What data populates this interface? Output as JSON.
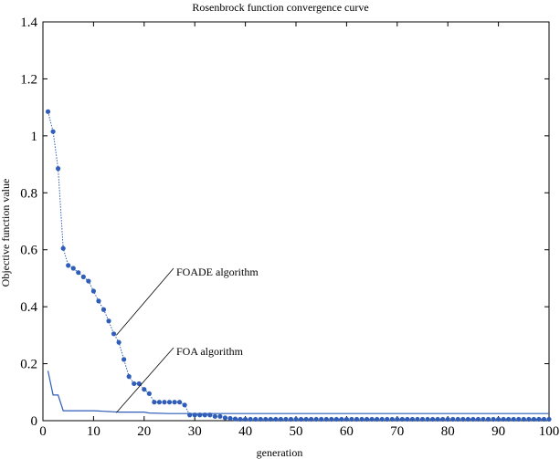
{
  "chart_data": {
    "type": "line",
    "title": "Rosenbrock function convergence curve",
    "xlabel": "generation",
    "ylabel": "Objective function value",
    "xlim": [
      0,
      100
    ],
    "ylim": [
      0,
      1.4
    ],
    "xticks": [
      "0",
      "10",
      "20",
      "30",
      "40",
      "50",
      "60",
      "70",
      "80",
      "90",
      "100"
    ],
    "yticks": [
      "0",
      "0.2",
      "0.4",
      "0.6",
      "0.8",
      "1",
      "1.2",
      "1.4"
    ],
    "grid": false,
    "line_color": "#2f5db8",
    "series": [
      {
        "name": "FOADE algorithm",
        "style": "dotted-with-markers",
        "x": [
          1,
          2,
          3,
          4,
          5,
          6,
          7,
          8,
          9,
          10,
          11,
          12,
          13,
          14,
          15,
          16,
          17,
          18,
          19,
          20,
          21,
          22,
          23,
          24,
          25,
          26,
          27,
          28,
          29,
          30,
          31,
          32,
          33,
          34,
          35,
          36,
          37,
          38,
          39,
          40,
          41,
          42,
          43,
          44,
          45,
          46,
          47,
          48,
          49,
          50,
          51,
          52,
          53,
          54,
          55,
          56,
          57,
          58,
          59,
          60,
          61,
          62,
          63,
          64,
          65,
          66,
          67,
          68,
          69,
          70,
          71,
          72,
          73,
          74,
          75,
          76,
          77,
          78,
          79,
          80,
          81,
          82,
          83,
          84,
          85,
          86,
          87,
          88,
          89,
          90,
          91,
          92,
          93,
          94,
          95,
          96,
          97,
          98,
          99,
          100
        ],
        "values": [
          1.085,
          1.015,
          0.885,
          0.605,
          0.545,
          0.535,
          0.52,
          0.505,
          0.49,
          0.455,
          0.42,
          0.39,
          0.35,
          0.305,
          0.275,
          0.215,
          0.155,
          0.13,
          0.13,
          0.11,
          0.095,
          0.065,
          0.065,
          0.065,
          0.065,
          0.065,
          0.065,
          0.055,
          0.02,
          0.02,
          0.02,
          0.02,
          0.02,
          0.015,
          0.015,
          0.01,
          0.008,
          0.006,
          0.005,
          0.005,
          0.005,
          0.005,
          0.005,
          0.005,
          0.005,
          0.005,
          0.005,
          0.005,
          0.005,
          0.005,
          0.005,
          0.005,
          0.005,
          0.005,
          0.005,
          0.005,
          0.005,
          0.005,
          0.005,
          0.005,
          0.005,
          0.005,
          0.005,
          0.005,
          0.005,
          0.005,
          0.005,
          0.005,
          0.005,
          0.005,
          0.005,
          0.005,
          0.005,
          0.005,
          0.005,
          0.005,
          0.005,
          0.005,
          0.005,
          0.005,
          0.005,
          0.005,
          0.005,
          0.005,
          0.005,
          0.005,
          0.005,
          0.005,
          0.005,
          0.005,
          0.005,
          0.005,
          0.005,
          0.005,
          0.005,
          0.005,
          0.005,
          0.005,
          0.005,
          0.005
        ]
      },
      {
        "name": "FOA algorithm",
        "style": "solid",
        "x": [
          1,
          2,
          3,
          4,
          5,
          6,
          7,
          8,
          9,
          10,
          11,
          12,
          13,
          14,
          15,
          16,
          17,
          18,
          19,
          20,
          21,
          25,
          30,
          40,
          50,
          60,
          70,
          80,
          90,
          100
        ],
        "values": [
          0.175,
          0.09,
          0.09,
          0.035,
          0.035,
          0.035,
          0.035,
          0.035,
          0.035,
          0.035,
          0.034,
          0.033,
          0.032,
          0.031,
          0.03,
          0.03,
          0.03,
          0.03,
          0.03,
          0.03,
          0.027,
          0.025,
          0.025,
          0.025,
          0.025,
          0.025,
          0.025,
          0.025,
          0.025,
          0.025
        ]
      }
    ],
    "annotations": [
      {
        "text": "FOADE  algorithm",
        "series": "FOADE algorithm",
        "x": 14.5,
        "y": 0.3
      },
      {
        "text": "FOA  algorithm",
        "series": "FOA algorithm",
        "x": 14.5,
        "y": 0.028
      }
    ]
  }
}
